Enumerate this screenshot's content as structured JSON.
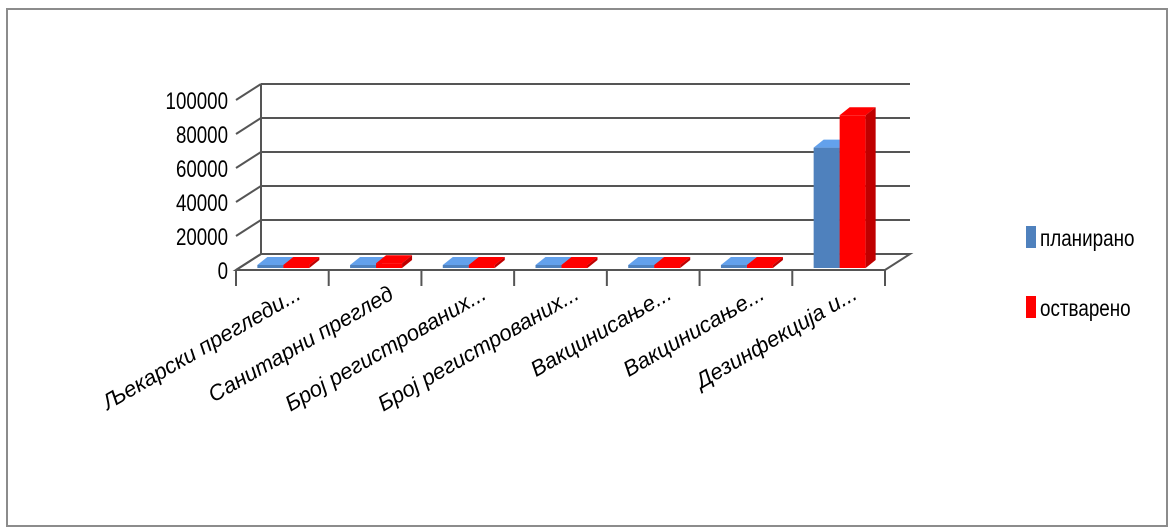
{
  "chart_data": {
    "type": "bar",
    "title": "",
    "xlabel": "",
    "ylabel": "",
    "ylim": [
      0,
      100000
    ],
    "yticks": [
      0,
      20000,
      40000,
      60000,
      80000,
      100000
    ],
    "grid": true,
    "legend_position": "right",
    "categories": [
      "Љекарски прегледи...",
      "Санитарни преглед",
      "Број регистрованих...",
      "Број регистрованих...",
      "Вакцинисање...",
      "Вакцинисање...",
      "Дезинфекција и..."
    ],
    "series": [
      {
        "name": "планирано",
        "color": "#4f81bd",
        "values": [
          200,
          1800,
          400,
          150,
          150,
          2000,
          72000
        ]
      },
      {
        "name": "остварено",
        "color": "#ff0000",
        "values": [
          300,
          4000,
          500,
          200,
          200,
          2500,
          91000
        ]
      }
    ]
  }
}
